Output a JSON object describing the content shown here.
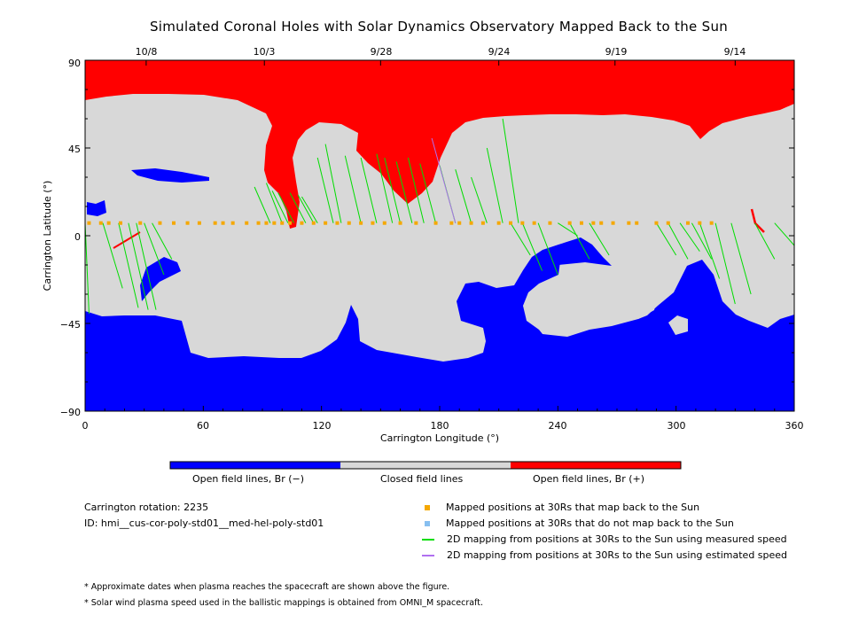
{
  "chart_data": {
    "type": "map",
    "title": "Simulated Coronal Holes with Solar Dynamics Observatory Mapped Back to the Sun",
    "xlabel": "Carrington Longitude (°)",
    "ylabel": "Carrington Latitude (°)",
    "xlim": [
      0,
      360
    ],
    "ylim": [
      -90,
      90
    ],
    "x_ticks": [
      "0",
      "60",
      "120",
      "180",
      "240",
      "300",
      "360"
    ],
    "y_ticks": [
      "90",
      "45",
      "0",
      "−45",
      "−90"
    ],
    "top_axis_dates": [
      {
        "label": "10/8",
        "lon": 31
      },
      {
        "label": "10/3",
        "lon": 91
      },
      {
        "label": "9/28",
        "lon": 150
      },
      {
        "label": "9/24",
        "lon": 210
      },
      {
        "label": "9/19",
        "lon": 269
      },
      {
        "label": "9/14",
        "lon": 330
      }
    ],
    "colors": {
      "open_negative": "#0000ff",
      "closed": "#d8d8d8",
      "open_positive": "#ff0000",
      "mapped_back": "#f5a800",
      "not_mapped": "#87bff0",
      "measured_speed": "#00dd00",
      "estimated_speed": "#b070f0"
    },
    "colorbar": [
      {
        "label": "Open field lines, Br (−)",
        "color": "#0000ff"
      },
      {
        "label": "Closed field lines",
        "color": "#d8d8d8"
      },
      {
        "label": "Open field lines, Br (+)",
        "color": "#ff0000"
      }
    ],
    "spacecraft_latitude": 6.5,
    "mapped_points_lon": [
      2,
      8,
      12,
      18,
      28,
      38,
      45,
      52,
      58,
      66,
      70,
      75,
      82,
      88,
      92,
      96,
      100,
      104,
      110,
      116,
      122,
      128,
      134,
      140,
      146,
      152,
      160,
      168,
      178,
      186,
      190,
      196,
      202,
      210,
      216,
      222,
      228,
      236,
      246,
      252,
      258,
      262,
      268,
      276,
      280,
      290,
      296,
      306,
      312,
      318
    ],
    "measured_mappings": [
      {
        "lon": 0,
        "lat": -20
      },
      {
        "lon": 2,
        "lat": -40
      },
      {
        "lon": 19,
        "lat": -27
      },
      {
        "lon": 27,
        "lat": -37
      },
      {
        "lon": 32,
        "lat": -38
      },
      {
        "lon": 36,
        "lat": -38
      },
      {
        "lon": 40,
        "lat": -20
      },
      {
        "lon": 44,
        "lat": -12
      },
      {
        "lon": 86,
        "lat": 25
      },
      {
        "lon": 92,
        "lat": 27
      },
      {
        "lon": 95,
        "lat": 23
      },
      {
        "lon": 98,
        "lat": 22
      },
      {
        "lon": 104,
        "lat": 22
      },
      {
        "lon": 108,
        "lat": 21
      },
      {
        "lon": 110,
        "lat": 20
      },
      {
        "lon": 122,
        "lat": 47
      },
      {
        "lon": 118,
        "lat": 40
      },
      {
        "lon": 132,
        "lat": 41
      },
      {
        "lon": 140,
        "lat": 40
      },
      {
        "lon": 148,
        "lat": 42
      },
      {
        "lon": 152,
        "lat": 40
      },
      {
        "lon": 158,
        "lat": 38
      },
      {
        "lon": 164,
        "lat": 40
      },
      {
        "lon": 170,
        "lat": 37
      },
      {
        "lon": 180,
        "lat": 36
      },
      {
        "lon": 188,
        "lat": 34
      },
      {
        "lon": 196,
        "lat": 30
      },
      {
        "lon": 204,
        "lat": 45
      },
      {
        "lon": 212,
        "lat": 60
      },
      {
        "lon": 226,
        "lat": -10
      },
      {
        "lon": 232,
        "lat": -18
      },
      {
        "lon": 240,
        "lat": -20
      },
      {
        "lon": 250,
        "lat": 0
      },
      {
        "lon": 256,
        "lat": -12
      },
      {
        "lon": 266,
        "lat": -10
      },
      {
        "lon": 300,
        "lat": -10
      },
      {
        "lon": 306,
        "lat": -12
      },
      {
        "lon": 312,
        "lat": -8
      },
      {
        "lon": 318,
        "lat": -12
      },
      {
        "lon": 322,
        "lat": -22
      },
      {
        "lon": 330,
        "lat": -35
      },
      {
        "lon": 338,
        "lat": -30
      },
      {
        "lon": 350,
        "lat": -12
      },
      {
        "lon": 360,
        "lat": -5
      }
    ],
    "estimated_mappings": [
      {
        "lon": 183,
        "lat": 42
      }
    ]
  },
  "legend": {
    "mapped_back": "Mapped positions at 30Rs that map back to the Sun",
    "not_mapped": "Mapped positions at 30Rs that do not map back to the Sun",
    "measured_speed": "2D mapping from positions at 30Rs to the Sun using measured speed",
    "estimated_speed": "2D mapping from positions at 30Rs to the Sun using estimated speed"
  },
  "info": {
    "rotation": "Carrington rotation: 2235",
    "id": "ID: hmi__cus-cor-poly-std01__med-hel-poly-std01"
  },
  "notes": [
    "* Approximate dates when plasma reaches the spacecraft are shown above the figure.",
    "* Solar wind plasma speed used in the ballistic mappings is obtained from OMNI_M spacecraft."
  ]
}
